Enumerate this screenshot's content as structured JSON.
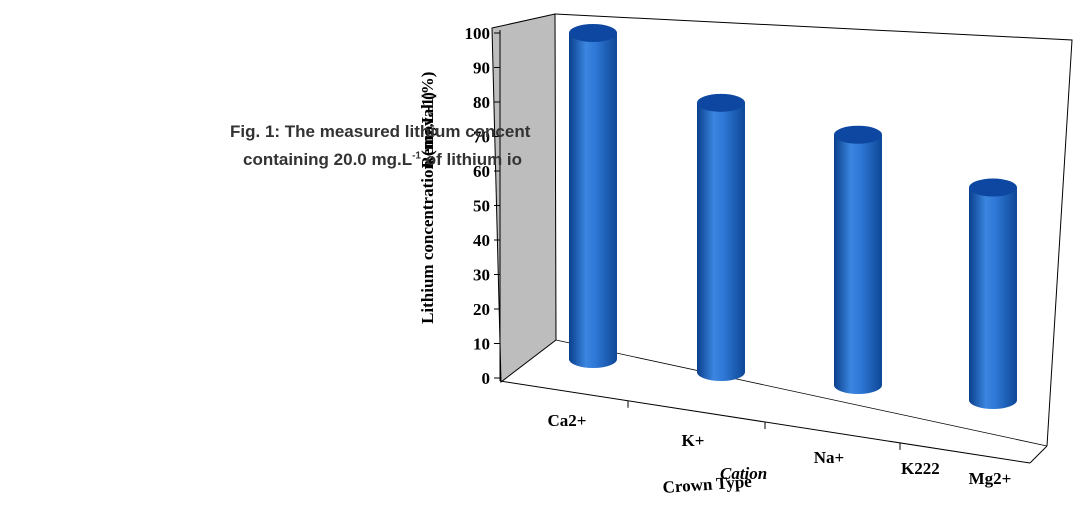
{
  "caption": {
    "line1": "Fig. 1: The measured lithium concent",
    "line2_prefix": "containing 20.0 mg.L",
    "line2_sup": "-1",
    "line2_suffix": " of lithium io"
  },
  "chart_data": {
    "type": "bar",
    "categories": [
      "Ca2+",
      "K+",
      "Na+",
      "Mg2+"
    ],
    "values": [
      98,
      79,
      71,
      57
    ],
    "ylim": [
      0,
      100
    ],
    "yticks": [
      0,
      10,
      20,
      30,
      40,
      50,
      60,
      70,
      80,
      90,
      100
    ],
    "ylabel": "Lithium concentration (mg.L-1)",
    "ylabel_overlay": "Removal (%)",
    "xlabels": [
      "Cation",
      "Crown Type"
    ],
    "extra_category_label": "K222",
    "grid": false,
    "three_d": true,
    "colors": {
      "bar": "#1a5fb4",
      "bar_light": "#5b9be8",
      "bar_top": "#0d47a1",
      "back_wall": "#bdbdbd",
      "frame": "#000000"
    }
  }
}
